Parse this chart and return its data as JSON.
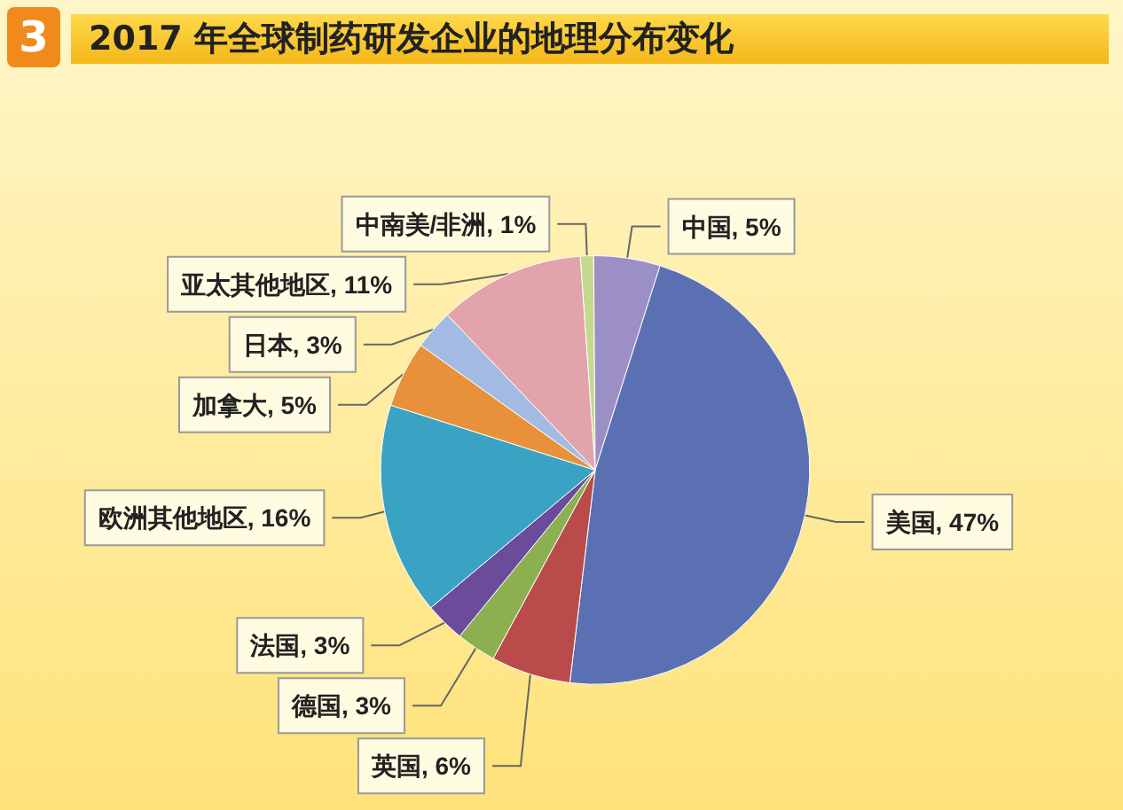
{
  "chart_data": {
    "type": "pie",
    "title": "2017 年全球制药研发企业的地理分布变化",
    "annotations": [
      "3"
    ],
    "categories": [
      "中南美/非洲",
      "中国",
      "美国",
      "英国",
      "德国",
      "法国",
      "欧洲其他地区",
      "加拿大",
      "日本",
      "亚太其他地区"
    ],
    "values": [
      1,
      5,
      47,
      6,
      3,
      3,
      16,
      5,
      3,
      11
    ],
    "value_labels": [
      "1%",
      "5%",
      "47%",
      "6%",
      "3%",
      "3%",
      "16%",
      "5%",
      "3%",
      "11%"
    ],
    "colors": [
      "#c4d98e",
      "#9c8fc6",
      "#5b70b3",
      "#b94b4b",
      "#8cb04f",
      "#6b4c9a",
      "#3aa2c2",
      "#e8913a",
      "#a3bbe2",
      "#e3a3ab"
    ],
    "legend": false
  }
}
